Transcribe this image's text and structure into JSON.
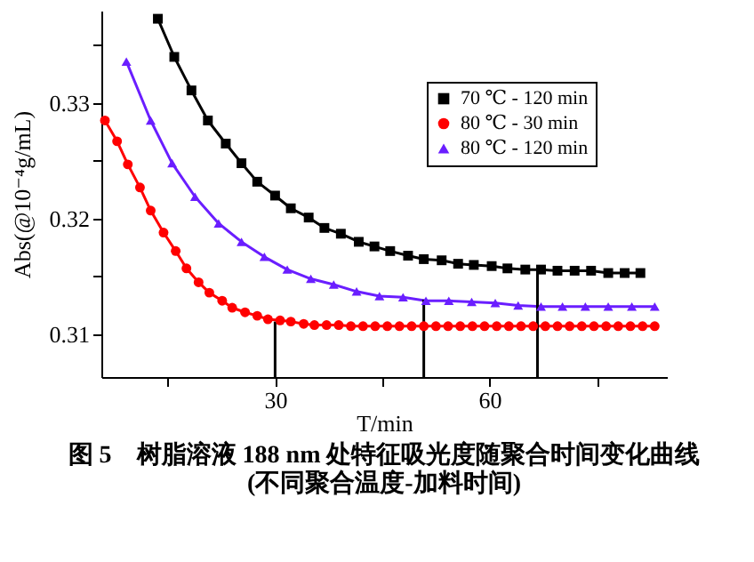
{
  "chart_data": {
    "type": "line",
    "title": "图 5　树脂溶液 188 nm 处特征吸光度随聚合时间变化曲线",
    "subtitle": "(不同聚合温度-加料时间)",
    "xlabel": "T/min",
    "ylabel": "Abs(@10⁻⁴g/mL)",
    "xlim": [
      5.7,
      84.8
    ],
    "xticks": [
      {
        "value": 15,
        "label": null
      },
      30,
      {
        "value": 45,
        "label": null
      },
      60,
      {
        "value": 75,
        "label": null
      }
    ],
    "ylim": [
      0.3063,
      0.338
    ],
    "yticks": [
      0.31,
      {
        "value": 0.315,
        "label": null
      },
      0.32,
      {
        "value": 0.325,
        "label": null
      },
      0.33,
      {
        "value": 0.335,
        "label": null
      }
    ],
    "legend": "top right",
    "series": [
      {
        "name": "70 ℃ - 120 min",
        "color": "#000000",
        "marker": "square",
        "x": [
          13.6,
          15.9,
          18.3,
          20.6,
          23.1,
          25.3,
          27.5,
          30.0,
          32.2,
          34.7,
          36.9,
          39.2,
          41.7,
          43.9,
          46.1,
          48.6,
          50.8,
          53.3,
          55.6,
          57.8,
          60.3,
          62.5,
          65.0,
          67.2,
          69.5,
          71.9,
          74.2,
          76.6,
          78.9,
          81.1
        ],
        "values": [
          0.3373,
          0.334,
          0.3311,
          0.3285,
          0.3265,
          0.3248,
          0.3232,
          0.322,
          0.3209,
          0.3201,
          0.3192,
          0.3187,
          0.318,
          0.3176,
          0.3172,
          0.3168,
          0.3165,
          0.3164,
          0.3161,
          0.316,
          0.3159,
          0.3157,
          0.3156,
          0.3156,
          0.3155,
          0.3155,
          0.3155,
          0.3153,
          0.3153,
          0.3153
        ]
      },
      {
        "name": "80 ℃ - 30 min",
        "color": "#ff0000",
        "marker": "circle",
        "x": [
          6.2,
          7.9,
          9.4,
          11.1,
          12.6,
          14.4,
          16.1,
          17.6,
          19.3,
          20.8,
          22.6,
          24.0,
          25.8,
          27.5,
          29.0,
          30.7,
          32.2,
          34.0,
          35.5,
          37.2,
          38.9,
          40.6,
          42.3,
          44.0,
          45.7,
          47.4,
          49.1,
          50.8,
          52.5,
          54.2,
          55.9,
          57.6,
          59.3,
          61.0,
          62.7,
          64.4,
          66.1,
          67.8,
          69.5,
          71.2,
          72.9,
          74.6,
          76.3,
          78.0,
          79.7,
          81.4,
          83.1
        ],
        "values": [
          0.3285,
          0.3267,
          0.3247,
          0.3227,
          0.3207,
          0.3188,
          0.3172,
          0.3157,
          0.3145,
          0.3136,
          0.3129,
          0.3123,
          0.3119,
          0.3116,
          0.3113,
          0.3112,
          0.3111,
          0.3109,
          0.3108,
          0.3108,
          0.3108,
          0.3107,
          0.3107,
          0.3107,
          0.3107,
          0.3107,
          0.3107,
          0.3107,
          0.3107,
          0.3107,
          0.3107,
          0.3107,
          0.3107,
          0.3107,
          0.3107,
          0.3107,
          0.3107,
          0.3107,
          0.3107,
          0.3107,
          0.3107,
          0.3107,
          0.3107,
          0.3107,
          0.3107,
          0.3107,
          0.3107
        ]
      },
      {
        "name": "80 ℃ - 120 min",
        "color": "#6a1eff",
        "marker": "triangle",
        "x": [
          9.2,
          12.6,
          15.6,
          18.8,
          22.1,
          25.3,
          28.5,
          31.7,
          35.0,
          38.2,
          41.4,
          44.6,
          47.9,
          51.1,
          54.3,
          57.5,
          60.8,
          64.0,
          67.2,
          70.2,
          73.4,
          76.6,
          79.9,
          83.1
        ],
        "values": [
          0.3336,
          0.3285,
          0.3248,
          0.3219,
          0.3196,
          0.318,
          0.3167,
          0.3156,
          0.3148,
          0.3143,
          0.3137,
          0.3133,
          0.3132,
          0.3129,
          0.3129,
          0.3128,
          0.3127,
          0.3125,
          0.3124,
          0.3124,
          0.3124,
          0.3124,
          0.3124,
          0.3124
        ]
      },
      {
        "color": "#000000",
        "marker": "none",
        "x": [
          30,
          30
        ],
        "values": [
          0.3063,
          0.3111
        ]
      },
      {
        "color": "#000000",
        "marker": "none",
        "x": [
          50.8,
          50.8
        ],
        "values": [
          0.3063,
          0.313
        ]
      },
      {
        "color": "#000000",
        "marker": "none",
        "x": [
          66.7,
          66.7
        ],
        "values": [
          0.3063,
          0.3156
        ]
      }
    ]
  }
}
